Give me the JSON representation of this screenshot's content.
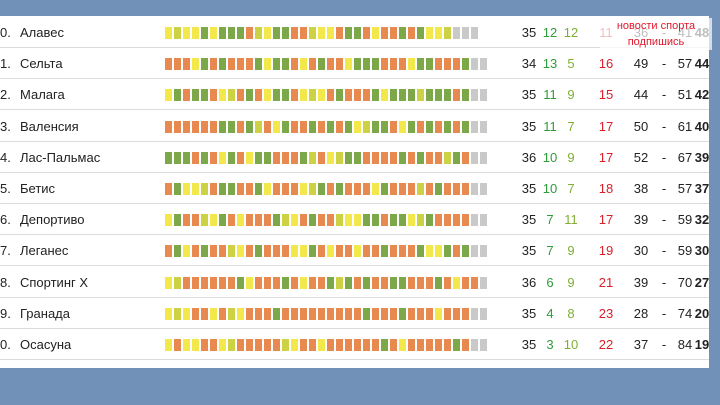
{
  "colors": {
    "win": "#7ca84a",
    "draw_light": "#f2e84c",
    "draw": "#ccd244",
    "loss": "#e88a4f",
    "empty": "#c9c9c9"
  },
  "watermark": {
    "line1": "новости спорта",
    "line2": "подпишись"
  },
  "rows": [
    {
      "rank": "0.",
      "team": "Алавес",
      "games": "35",
      "wins": "12",
      "draws": "12",
      "losses": "11",
      "gf": "36",
      "ga": "41",
      "pts": "48",
      "form": "ddddwdwwwlddwwlldddlwwldllwlwdddeee"
    },
    {
      "rank": "1.",
      "team": "Сельта",
      "games": "34",
      "wins": "13",
      "draws": "5",
      "losses": "16",
      "gf": "49",
      "ga": "57",
      "pts": "44",
      "form": "llldwlwlllwdwwldlwlldwwwllldwwlllwee"
    },
    {
      "rank": "2.",
      "team": "Малага",
      "games": "35",
      "wins": "11",
      "draws": "9",
      "losses": "15",
      "gf": "44",
      "ga": "51",
      "pts": "42",
      "form": "dwlwwlddlwldwwldddlwlllwdwwwdwwwlwee"
    },
    {
      "rank": "3.",
      "team": "Валенсия",
      "games": "35",
      "wins": "11",
      "draws": "7",
      "losses": "17",
      "gf": "50",
      "ga": "61",
      "pts": "40",
      "form": "llllllwwlwdldwllwlwlwddwwldwlwlwlwee"
    },
    {
      "rank": "4.",
      "team": "Лас-Пальмас",
      "games": "36",
      "wins": "10",
      "draws": "9",
      "losses": "17",
      "gf": "52",
      "ga": "67",
      "pts": "39",
      "form": "wwwlwldwldwwlllwdlddwwllllwlwlldwlee"
    },
    {
      "rank": "5.",
      "team": "Бетис",
      "games": "35",
      "wins": "10",
      "draws": "7",
      "losses": "18",
      "gf": "38",
      "ga": "57",
      "pts": "37",
      "form": "lwdddlwwllwdlllddwlwllldwllldlwlllee"
    },
    {
      "rank": "6.",
      "team": "Депортиво",
      "games": "35",
      "wins": "7",
      "draws": "11",
      "losses": "17",
      "gf": "39",
      "ga": "59",
      "pts": "32",
      "form": "dwllddwldlllwddlwlldddwwlwwddwllllee"
    },
    {
      "rank": "7.",
      "team": "Леганес",
      "games": "35",
      "wins": "7",
      "draws": "9",
      "losses": "19",
      "gf": "30",
      "ga": "59",
      "pts": "30",
      "form": "lwdlwllddlwlllddwldlldllwlllwddwlwee"
    },
    {
      "rank": "8.",
      "team": "Спортинг Х",
      "games": "36",
      "wins": "6",
      "draws": "9",
      "losses": "21",
      "gf": "39",
      "ga": "70",
      "pts": "27",
      "form": "ddllllllwdlllwldllwdwlwllwwlllwldlle"
    },
    {
      "rank": "9.",
      "team": "Гранада",
      "games": "35",
      "wins": "4",
      "draws": "8",
      "losses": "23",
      "gf": "28",
      "ga": "74",
      "pts": "20",
      "form": "dddlldlddlllwlllllllllwlllwllldlllee"
    },
    {
      "rank": "0.",
      "team": "Осасуна",
      "games": "35",
      "wins": "3",
      "draws": "10",
      "losses": "22",
      "gf": "37",
      "ga": "84",
      "pts": "19",
      "form": "dlddllddlllllddlldllllllwldlllllwlee"
    }
  ]
}
